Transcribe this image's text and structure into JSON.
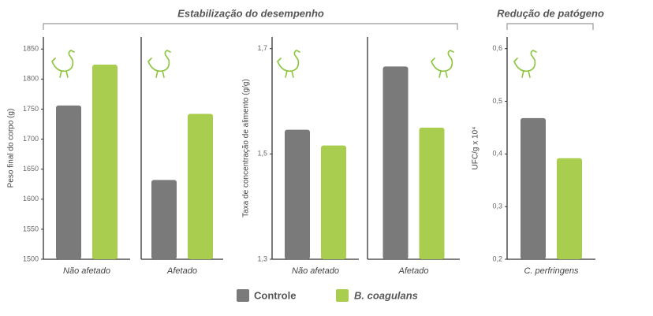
{
  "sections": [
    "Estabilização do desempenho",
    "Redução de patógeno"
  ],
  "chart_data": [
    {
      "type": "bar",
      "y_label": "Peso final do corpo (g)",
      "categories": [
        "Não afetado",
        "Afetado"
      ],
      "series": [
        {
          "name": "Controle",
          "color": "#7a7a7a",
          "values": [
            1756,
            1632
          ]
        },
        {
          "name": "B. coagulans",
          "color": "#a8cd4f",
          "values": [
            1824,
            1742
          ]
        }
      ],
      "ylim": [
        1500,
        1870
      ],
      "yticks": [
        1500,
        1550,
        1600,
        1650,
        1700,
        1750,
        1800,
        1850
      ]
    },
    {
      "type": "bar",
      "y_label": "Taxa de concentração de alimento (g/g)",
      "categories": [
        "Não afetado",
        "Afetado"
      ],
      "series": [
        {
          "values": [
            1.546,
            1.666
          ]
        },
        {
          "values": [
            1.516,
            1.55
          ]
        }
      ],
      "ylim": [
        1.3,
        1.722
      ],
      "yticks": [
        {
          "value": 1.3,
          "label": "1,3"
        },
        {
          "value": 1.5,
          "label": "1,5"
        },
        {
          "value": 1.7,
          "label": "1,7"
        }
      ]
    },
    {
      "type": "bar",
      "y_label": "UFC/g x 10⁴",
      "categories": [
        "C. perfringens"
      ],
      "series": [
        {
          "values": [
            0.468
          ]
        },
        {
          "values": [
            0.392
          ]
        }
      ],
      "ylim": [
        0.2,
        0.622
      ],
      "yticks": [
        {
          "value": 0.2,
          "label": "0,2"
        },
        {
          "value": 0.3,
          "label": "0,3"
        },
        {
          "value": 0.4,
          "label": "0,4"
        },
        {
          "value": 0.5,
          "label": "0,5"
        },
        {
          "value": 0.6,
          "label": "0,6"
        }
      ]
    }
  ]
}
